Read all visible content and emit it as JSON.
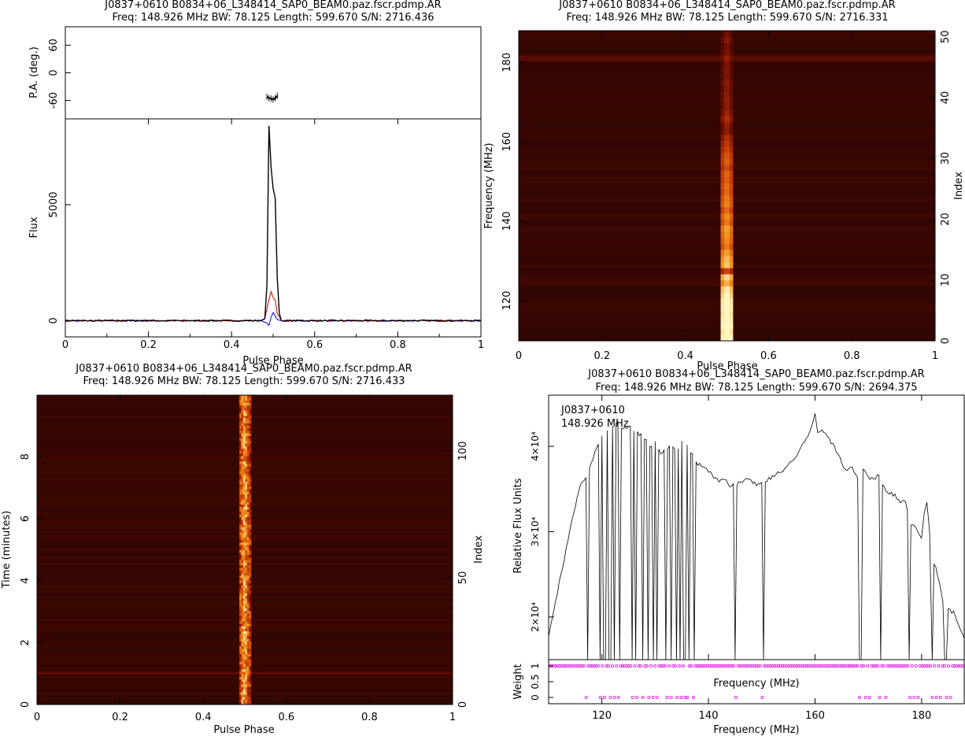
{
  "chart_data": [
    {
      "panel": "profile",
      "type": "line",
      "title": "J0837+0610  B0834+06_L348414_SAP0_BEAM0.paz.fscr.pdmp.AR",
      "subtitle": "Freq: 148.926 MHz BW: 78.125 Length: 599.670 S/N: 2716.436",
      "xlabel": "Pulse Phase",
      "xlim": [
        0,
        1
      ],
      "xticks": [
        "0",
        "0.2",
        "0.4",
        "0.6",
        "0.8",
        "1"
      ],
      "pa": {
        "ylabel": "P.A. (deg.)",
        "ylim": [
          -100,
          100
        ],
        "yticks": [
          "-60",
          "0",
          "60"
        ],
        "x": [
          0.485,
          0.49,
          0.495,
          0.5,
          0.505,
          0.51
        ],
        "y": [
          -52,
          -55,
          -56,
          -58,
          -55,
          -50
        ]
      },
      "flux": {
        "ylabel": "Flux",
        "ylim": [
          -700,
          8700
        ],
        "yticks": [
          "0",
          "5000"
        ],
        "series": [
          {
            "color": "#000000",
            "x": [
              0,
              0.47,
              0.48,
              0.485,
              0.49,
              0.495,
              0.5,
              0.505,
              0.51,
              0.515,
              0.52,
              0.53,
              1
            ],
            "y": [
              0,
              0,
              80,
              1500,
              8400,
              6600,
              5700,
              5300,
              1800,
              300,
              0,
              0,
              0
            ]
          },
          {
            "color": "#cc0000",
            "x": [
              0,
              0.47,
              0.48,
              0.49,
              0.495,
              0.5,
              0.505,
              0.51,
              0.52,
              1
            ],
            "y": [
              0,
              0,
              100,
              900,
              1250,
              1000,
              900,
              300,
              0,
              0
            ]
          },
          {
            "color": "#0000ee",
            "x": [
              0,
              0.47,
              0.485,
              0.49,
              0.495,
              0.5,
              0.505,
              0.51,
              0.52,
              1
            ],
            "y": [
              0,
              0,
              -100,
              -200,
              150,
              350,
              200,
              50,
              0,
              0
            ]
          }
        ]
      }
    },
    {
      "panel": "phase-frequency",
      "type": "heatmap",
      "title": "J0837+0610  B0834+06_L348414_SAP0_BEAM0.paz.fscr.pdmp.AR",
      "subtitle": "Freq: 148.926 MHz BW: 78.125 Length: 599.670 S/N: 2716.331",
      "xlabel": "Pulse Phase",
      "ylabel": "Frequency (MHz)",
      "ylabel_right": "Index",
      "xlim": [
        0,
        1
      ],
      "ylim": [
        109.86,
        187.99
      ],
      "ylim_right": [
        0,
        51
      ],
      "xticks": [
        "0",
        "0.2",
        "0.4",
        "0.6",
        "0.8",
        "1"
      ],
      "yticks": [
        "120",
        "140",
        "160",
        "180"
      ],
      "yticks_right": [
        "0",
        "10",
        "20",
        "30",
        "40",
        "50"
      ],
      "pulse_phase_range": [
        0.485,
        0.515
      ],
      "channel_intensity": [
        1.0,
        0.95,
        1.0,
        0.98,
        0.95,
        0.98,
        0.96,
        0.9,
        0.85,
        0.7,
        0.8,
        0.4,
        0.75,
        0.72,
        0.65,
        0.55,
        0.6,
        0.62,
        0.65,
        0.55,
        0.6,
        0.5,
        0.58,
        0.55,
        0.5,
        0.52,
        0.48,
        0.5,
        0.42,
        0.48,
        0.45,
        0.4,
        0.35,
        0.3,
        0.2,
        0.22,
        0.3,
        0.25,
        0.2,
        0.22,
        0.2,
        0.18,
        0.2,
        0.15,
        0.18,
        0.15,
        0.22,
        0.15,
        0.12,
        0.18,
        0.12
      ]
    },
    {
      "panel": "phase-time",
      "type": "heatmap",
      "title": "J0837+0610  B0834+06_L348414_SAP0_BEAM0.paz.fscr.pdmp.AR",
      "subtitle": "Freq: 148.926 MHz BW: 78.125 Length: 599.670 S/N: 2716.433",
      "xlabel": "Pulse Phase",
      "ylabel": "Time (minutes)",
      "ylabel_right": "Index",
      "xlim": [
        0,
        1
      ],
      "ylim": [
        0,
        9.99
      ],
      "ylim_right": [
        0,
        122
      ],
      "xticks": [
        "0",
        "0.2",
        "0.4",
        "0.6",
        "0.8",
        "1"
      ],
      "yticks": [
        "0",
        "2",
        "4",
        "6",
        "8"
      ],
      "yticks_right": [
        "0",
        "50",
        "100"
      ],
      "pulse_phase_range": [
        0.487,
        0.515
      ]
    },
    {
      "panel": "bandpass",
      "type": "line",
      "title": "J0837+0610  B0834+06_L348414_SAP0_BEAM0.paz.fscr.pdmp.AR",
      "subtitle": "Freq: 148.926 MHz BW: 78.125 Length: 599.670 S/N: 2694.375",
      "annotation": [
        "J0837+0610",
        "148.926 MHz"
      ],
      "ylabel": "Relative Flux Units",
      "xlabel_mid": "Frequency (MHz)",
      "xlabel": "Frequency (MHz)",
      "xlim": [
        110,
        188
      ],
      "ylim": [
        15000,
        46000
      ],
      "yticks": [
        "2×10⁴",
        "3×10⁴",
        "4×10⁴"
      ],
      "xticks": [
        "120",
        "140",
        "160",
        "180"
      ],
      "weight": {
        "ylabel": "Weight",
        "ylim": [
          -0.2,
          1.2
        ],
        "yticks": [
          "0",
          "0.5",
          "1"
        ],
        "zero_weight_freqs": [
          117.2,
          119.7,
          120.5,
          121.5,
          122.3,
          123.2,
          125.6,
          126.4,
          127.8,
          128.8,
          129.7,
          130.3,
          132.1,
          132.9,
          134.1,
          134.8,
          135.5,
          136.2,
          137.2,
          145.0,
          150.2,
          168.5,
          169.3,
          170.1,
          172.3,
          173.1,
          177.8,
          178.6,
          179.4,
          182.1,
          182.9,
          183.7,
          184.5,
          185.3
        ]
      },
      "series": {
        "x": [
          110,
          110.5,
          111,
          112,
          113,
          114,
          115,
          116,
          117,
          118,
          119,
          120,
          121,
          122,
          123,
          124,
          125,
          126,
          127,
          128,
          129,
          130,
          131,
          132,
          133,
          134,
          135,
          136,
          137,
          138,
          139,
          140,
          141,
          142,
          143,
          144,
          145,
          146,
          147,
          148,
          149,
          150,
          151,
          152,
          153,
          154,
          155,
          156,
          157,
          158,
          159,
          160,
          160.5,
          161,
          162,
          163,
          164,
          165,
          166,
          167,
          168,
          169,
          170,
          171,
          172,
          173,
          174,
          175,
          176,
          177,
          178,
          179,
          180,
          180.5,
          181,
          181.5,
          182,
          183,
          184,
          185,
          186,
          187,
          188
        ],
        "y": [
          18000,
          19500,
          21000,
          24000,
          27000,
          30000,
          33000,
          35500,
          36500,
          38000,
          40000,
          41000,
          42000,
          42500,
          43000,
          42000,
          42500,
          42000,
          41500,
          41000,
          40000,
          40500,
          39000,
          39500,
          40000,
          39500,
          40500,
          40000,
          39000,
          38000,
          37500,
          37000,
          36500,
          36000,
          36000,
          35500,
          35500,
          35800,
          36200,
          36000,
          35500,
          36000,
          36000,
          36500,
          36800,
          37200,
          37800,
          38500,
          39500,
          40500,
          41500,
          43800,
          41500,
          42000,
          41500,
          40500,
          39500,
          38000,
          37000,
          37500,
          36500,
          37500,
          36500,
          36000,
          36800,
          35000,
          34500,
          34200,
          33500,
          33500,
          31000,
          30500,
          29000,
          32000,
          33500,
          30000,
          27000,
          25000,
          22000,
          21000,
          20500,
          19000,
          17500
        ]
      },
      "dropouts": [
        117.2,
        119.7,
        120.5,
        121.5,
        122.3,
        123.2,
        125.6,
        126.4,
        127.8,
        128.8,
        129.7,
        130.3,
        132.1,
        132.9,
        134.1,
        134.8,
        135.5,
        136.2,
        137.2,
        145.0,
        150.2,
        168.5,
        172.3,
        177.8,
        182.1,
        184.5
      ]
    }
  ]
}
